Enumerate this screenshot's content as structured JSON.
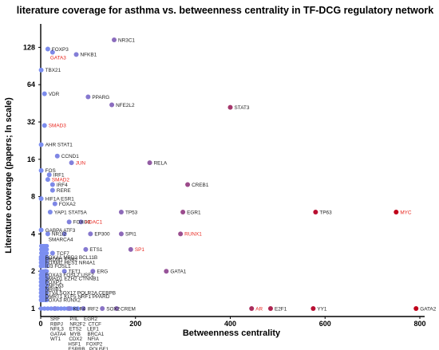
{
  "chart_data": {
    "type": "scatter",
    "title": "literature coverage for asthma vs. betweenness centrality in TF-DCG regulatory network",
    "xlabel": "Betweenness centrality",
    "ylabel": "Literature coverage (papers; ln scale)",
    "x_scale": "linear",
    "y_scale": "log2",
    "xlim": [
      0,
      800
    ],
    "ylim": [
      0.9,
      160
    ],
    "x_ticks": [
      "0",
      "200",
      "400",
      "600",
      "800"
    ],
    "y_ticks": [
      "1",
      "2",
      "4",
      "8",
      "16",
      "32",
      "64",
      "128"
    ],
    "grid": false,
    "legend": "none",
    "colors": {
      "low": "#7b8ef0",
      "high": "#c0001a",
      "label_default": "#222222",
      "label_highlight": "#e8261e"
    },
    "points": [
      {
        "x": 155,
        "y": 147,
        "label": "NR3C1",
        "labelSide": "right"
      },
      {
        "x": 15,
        "y": 124,
        "label": "FOXP3",
        "labelSide": "right"
      },
      {
        "x": 25,
        "y": 117,
        "label": "GATA3",
        "labelSide": "below",
        "highlight": true
      },
      {
        "x": 75,
        "y": 112,
        "label": "NFKB1",
        "labelSide": "right"
      },
      {
        "x": 1,
        "y": 84,
        "label": "TBX21",
        "labelSide": "right"
      },
      {
        "x": 8,
        "y": 54,
        "label": "VDR",
        "labelSide": "right"
      },
      {
        "x": 100,
        "y": 51,
        "label": "PPARG",
        "labelSide": "right"
      },
      {
        "x": 150,
        "y": 44,
        "label": "NFE2L2",
        "labelSide": "right"
      },
      {
        "x": 400,
        "y": 42,
        "label": "STAT3",
        "labelSide": "right"
      },
      {
        "x": 8,
        "y": 30,
        "label": "SMAD3",
        "labelSide": "right",
        "highlight": true
      },
      {
        "x": 1,
        "y": 21,
        "label": "AHR STAT1",
        "labelSide": "right"
      },
      {
        "x": 35,
        "y": 17,
        "label": "CCND1",
        "labelSide": "right"
      },
      {
        "x": 65,
        "y": 15,
        "label": "JUN",
        "labelSide": "right",
        "highlight": true
      },
      {
        "x": 230,
        "y": 15,
        "label": "RELA",
        "labelSide": "right"
      },
      {
        "x": 1,
        "y": 13,
        "label": "FOS",
        "labelSide": "right"
      },
      {
        "x": 18,
        "y": 12,
        "label": "IRF1",
        "labelSide": "right"
      },
      {
        "x": 15,
        "y": 11,
        "label": "SMAD2",
        "labelSide": "right",
        "highlight": true
      },
      {
        "x": 25,
        "y": 10,
        "label": "IRF4",
        "labelSide": "right"
      },
      {
        "x": 310,
        "y": 10,
        "label": "CREB1",
        "labelSide": "right"
      },
      {
        "x": 25,
        "y": 9,
        "label": "RERE",
        "labelSide": "right"
      },
      {
        "x": 1,
        "y": 7.7,
        "label": "HIF1A ESR1",
        "labelSide": "right"
      },
      {
        "x": 30,
        "y": 7,
        "label": "FOXA2",
        "labelSide": "right"
      },
      {
        "x": 20,
        "y": 6,
        "label": "YAP1 STAT5A",
        "labelSide": "right"
      },
      {
        "x": 170,
        "y": 6,
        "label": "TP53",
        "labelSide": "right"
      },
      {
        "x": 300,
        "y": 6,
        "label": "EGR1",
        "labelSide": "right"
      },
      {
        "x": 580,
        "y": 6,
        "label": "TP63",
        "labelSide": "right"
      },
      {
        "x": 750,
        "y": 6,
        "label": "MYC",
        "labelSide": "right",
        "highlight": true
      },
      {
        "x": 60,
        "y": 5,
        "label": "FOXO3",
        "labelSide": "right"
      },
      {
        "x": 85,
        "y": 5,
        "label": "HDAC1",
        "labelSide": "right",
        "highlight": true
      },
      {
        "x": 1,
        "y": 4.3,
        "label": "GABPA ATF3",
        "labelSide": "right"
      },
      {
        "x": 15,
        "y": 4,
        "label": "NR1I2",
        "labelSide": "right"
      },
      {
        "x": 50,
        "y": 4,
        "label": "SMARCA4",
        "labelSide": "belowright"
      },
      {
        "x": 105,
        "y": 4,
        "label": "EP300",
        "labelSide": "right"
      },
      {
        "x": 170,
        "y": 4,
        "label": "SPI1",
        "labelSide": "right"
      },
      {
        "x": 295,
        "y": 4,
        "label": "RUNX1",
        "labelSide": "right",
        "highlight": true
      },
      {
        "x": 95,
        "y": 3,
        "label": "ETS1",
        "labelSide": "right"
      },
      {
        "x": 190,
        "y": 3,
        "label": "SP1",
        "labelSide": "right",
        "highlight": true
      },
      {
        "x": 25,
        "y": 2.8,
        "label": "TCF7",
        "labelSide": "right"
      },
      {
        "x": 1,
        "y": 2.6,
        "label": "FOXA1 MBD2 BCL11B",
        "labelSide": "right"
      },
      {
        "x": 1,
        "y": 2.5,
        "label": "PRDM1 ESR2",
        "labelSide": "right"
      },
      {
        "x": 1,
        "y": 2.35,
        "label": "FOXM1 HES1 NR4A1",
        "labelSide": "right"
      },
      {
        "x": 1,
        "y": 2.2,
        "label": "ID3   FOSL1",
        "labelSide": "right"
      },
      {
        "x": 10,
        "y": 2,
        "label": "",
        "labelSide": "none"
      },
      {
        "x": 50,
        "y": 2,
        "label": "TET1",
        "labelSide": "right"
      },
      {
        "x": 110,
        "y": 2,
        "label": "ERG",
        "labelSide": "right"
      },
      {
        "x": 265,
        "y": 2,
        "label": "GATA1",
        "labelSide": "right"
      },
      {
        "x": 1,
        "y": 1.87,
        "label": "FOXA3 FOSL2 USF2",
        "labelSide": "right"
      },
      {
        "x": 1,
        "y": 1.75,
        "label": "SMAD1 EZH2  CTNNB1",
        "labelSide": "right"
      },
      {
        "x": 1,
        "y": 1.64,
        "label": "FOXP1",
        "labelSide": "right"
      },
      {
        "x": 1,
        "y": 1.53,
        "label": "ZNF263",
        "labelSide": "right"
      },
      {
        "x": 1,
        "y": 1.43,
        "label": "NR0B1",
        "labelSide": "right"
      },
      {
        "x": 1,
        "y": 1.34,
        "label": "ETV4    SOX17  POLR2A   CEBPB",
        "labelSide": "right"
      },
      {
        "x": 1,
        "y": 1.25,
        "label": "DMRT1  KLF5  NRF1   PPARD",
        "labelSide": "right"
      },
      {
        "x": 1,
        "y": 1.17,
        "label": "FOXA3    RUNX2",
        "labelSide": "right"
      },
      {
        "x": 30,
        "y": 1,
        "label": "",
        "labelSide": "none"
      },
      {
        "x": 60,
        "y": 1,
        "label": "KLF4",
        "labelSide": "right"
      },
      {
        "x": 90,
        "y": 1,
        "label": "IRF2",
        "labelSide": "right"
      },
      {
        "x": 130,
        "y": 1,
        "label": "SOX2",
        "labelSide": "right"
      },
      {
        "x": 160,
        "y": 1,
        "label": "CREM",
        "labelSide": "right"
      },
      {
        "x": 445,
        "y": 1,
        "label": "AR",
        "labelSide": "right",
        "highlight": true
      },
      {
        "x": 485,
        "y": 1,
        "label": "E2F1",
        "labelSide": "right"
      },
      {
        "x": 575,
        "y": 1,
        "label": "YY1",
        "labelSide": "right"
      },
      {
        "x": 792,
        "y": 1,
        "label": "GATA2",
        "labelSide": "right"
      }
    ],
    "baseline_stack": [
      "SRF       P/IL    EGR2",
      "RBPJ     NR2F2  CTCF",
      "NFIL3    ETS2    LEF1",
      "GATA4   MYB     BRCA1",
      "WT1      CDX2    NFIA",
      "             HSF1    FOXP2",
      "             ESRRB   POU5F1"
    ]
  }
}
